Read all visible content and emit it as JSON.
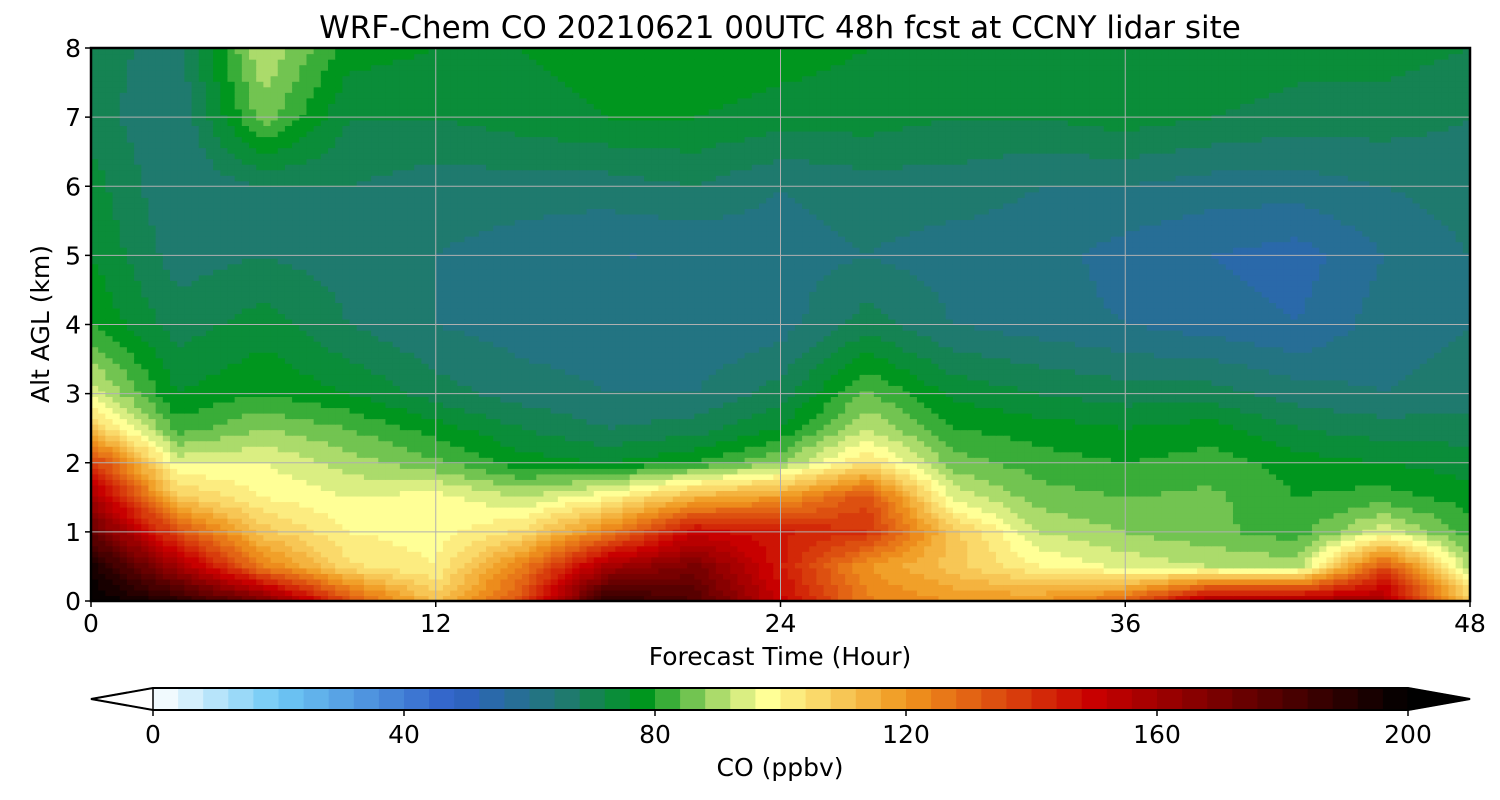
{
  "chart_data": {
    "type": "heatmap",
    "title": "WRF-Chem CO  20210621 00UTC 48h fcst at CCNY lidar site",
    "xlabel": "Forecast Time (Hour)",
    "ylabel": "Alt AGL (km)",
    "xlim": [
      0,
      48
    ],
    "ylim": [
      0,
      8
    ],
    "xticks": [
      "0",
      "12",
      "24",
      "36",
      "48"
    ],
    "yticks": [
      "0",
      "1",
      "2",
      "3",
      "4",
      "5",
      "6",
      "7",
      "8"
    ],
    "grid": true,
    "colorbar": {
      "label": "CO  (ppbv)",
      "range": [
        0,
        200
      ],
      "step": 4,
      "ticks": [
        "0",
        "40",
        "80",
        "120",
        "160",
        "200"
      ],
      "extend": "both",
      "colormap_stops": [
        {
          "value": 0,
          "color": "#ffffff"
        },
        {
          "value": 20,
          "color": "#6ec8f5"
        },
        {
          "value": 48,
          "color": "#3060c8"
        },
        {
          "value": 66,
          "color": "#1f7a6e"
        },
        {
          "value": 78,
          "color": "#00961e"
        },
        {
          "value": 92,
          "color": "#c8e678"
        },
        {
          "value": 98,
          "color": "#ffff96"
        },
        {
          "value": 120,
          "color": "#f0961e"
        },
        {
          "value": 150,
          "color": "#c80000"
        },
        {
          "value": 185,
          "color": "#3c0000"
        },
        {
          "value": 200,
          "color": "#000000"
        }
      ]
    },
    "x": [
      0,
      3,
      6,
      9,
      12,
      15,
      18,
      21,
      24,
      27,
      30,
      33,
      36,
      39,
      42,
      45,
      48
    ],
    "y": [
      0,
      0.5,
      1,
      1.5,
      2,
      2.5,
      3,
      4,
      5,
      6,
      7,
      8
    ],
    "values": [
      [
        200,
        190,
        170,
        135,
        110,
        135,
        190,
        180,
        150,
        125,
        120,
        120,
        130,
        160,
        160,
        160,
        110
      ],
      [
        195,
        160,
        125,
        105,
        100,
        125,
        160,
        170,
        145,
        120,
        110,
        100,
        95,
        92,
        90,
        135,
        90
      ],
      [
        175,
        135,
        110,
        100,
        98,
        105,
        125,
        150,
        145,
        140,
        110,
        92,
        88,
        85,
        82,
        95,
        82
      ],
      [
        160,
        110,
        100,
        96,
        98,
        92,
        100,
        115,
        120,
        135,
        95,
        86,
        84,
        85,
        80,
        82,
        78
      ],
      [
        140,
        95,
        96,
        90,
        85,
        78,
        76,
        80,
        88,
        105,
        86,
        82,
        80,
        82,
        78,
        76,
        74
      ],
      [
        110,
        82,
        88,
        84,
        78,
        72,
        68,
        70,
        76,
        92,
        80,
        78,
        76,
        78,
        72,
        70,
        70
      ],
      [
        95,
        76,
        80,
        76,
        70,
        66,
        64,
        64,
        70,
        85,
        75,
        72,
        70,
        70,
        66,
        64,
        66
      ],
      [
        80,
        70,
        74,
        68,
        64,
        62,
        62,
        60,
        62,
        70,
        64,
        62,
        60,
        58,
        56,
        62,
        64
      ],
      [
        76,
        66,
        68,
        66,
        64,
        62,
        60,
        60,
        62,
        64,
        62,
        62,
        58,
        56,
        54,
        60,
        64
      ],
      [
        74,
        64,
        68,
        68,
        66,
        66,
        66,
        68,
        64,
        66,
        66,
        64,
        64,
        62,
        62,
        64,
        66
      ],
      [
        70,
        64,
        86,
        72,
        72,
        74,
        76,
        76,
        74,
        74,
        72,
        72,
        74,
        72,
        70,
        70,
        68
      ],
      [
        70,
        66,
        92,
        78,
        76,
        76,
        78,
        80,
        78,
        76,
        76,
        76,
        76,
        76,
        74,
        74,
        72
      ]
    ]
  }
}
